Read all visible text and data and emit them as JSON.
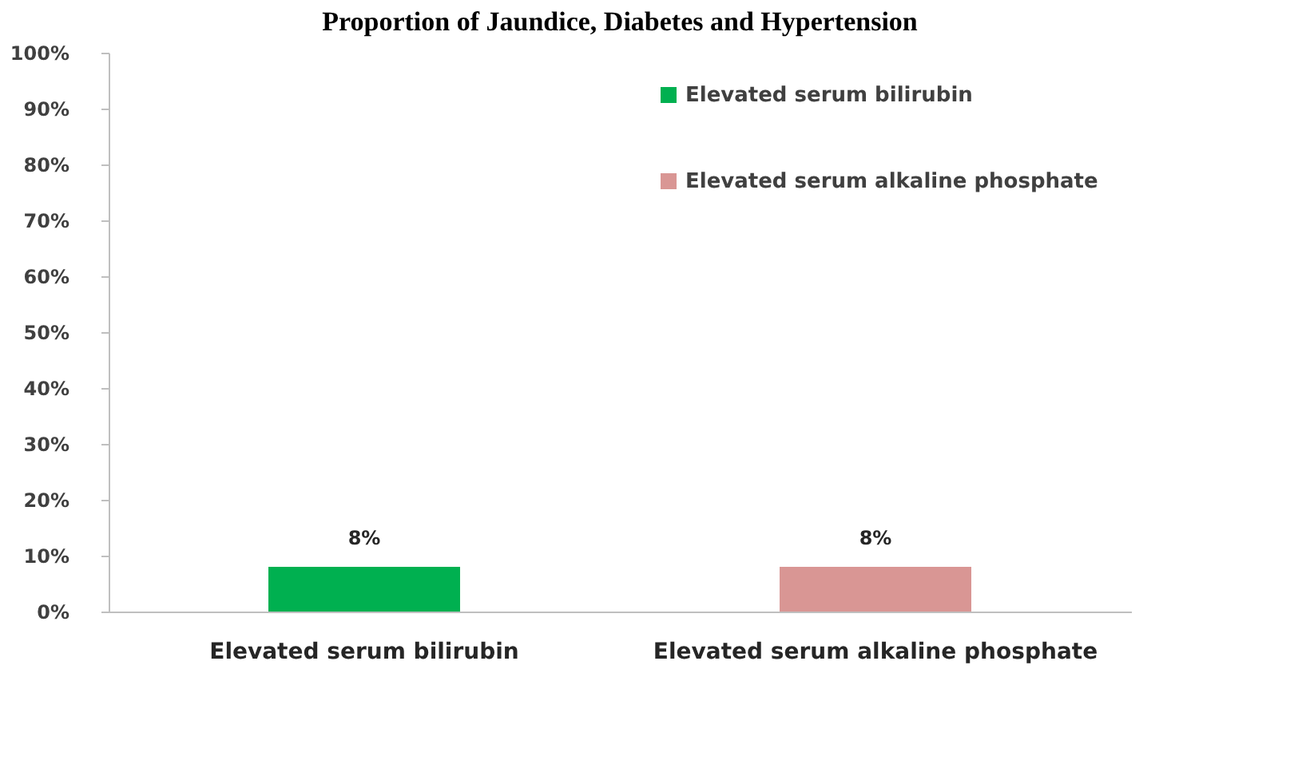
{
  "chart_data": {
    "type": "bar",
    "title": "Proportion of Jaundice, Diabetes and Hypertension",
    "categories": [
      "Elevated serum bilirubin",
      "Elevated serum alkaline phosphate"
    ],
    "series": [
      {
        "name": "Elevated serum bilirubin",
        "color": "#00b050",
        "values": [
          8,
          null
        ],
        "value_labels": [
          "8%",
          null
        ]
      },
      {
        "name": "Elevated serum alkaline phosphate",
        "color": "#d99694",
        "values": [
          null,
          8
        ],
        "value_labels": [
          null,
          "8%"
        ]
      }
    ],
    "ylim": [
      0,
      100
    ],
    "yticks": [
      {
        "value": 0,
        "label": "0%"
      },
      {
        "value": 10,
        "label": "10%"
      },
      {
        "value": 20,
        "label": "20%"
      },
      {
        "value": 30,
        "label": "30%"
      },
      {
        "value": 40,
        "label": "40%"
      },
      {
        "value": 50,
        "label": "50%"
      },
      {
        "value": 60,
        "label": "60%"
      },
      {
        "value": 70,
        "label": "70%"
      },
      {
        "value": 80,
        "label": "80%"
      },
      {
        "value": 90,
        "label": "90%"
      },
      {
        "value": 100,
        "label": "100%"
      }
    ],
    "grid": false,
    "legend": "top right"
  }
}
